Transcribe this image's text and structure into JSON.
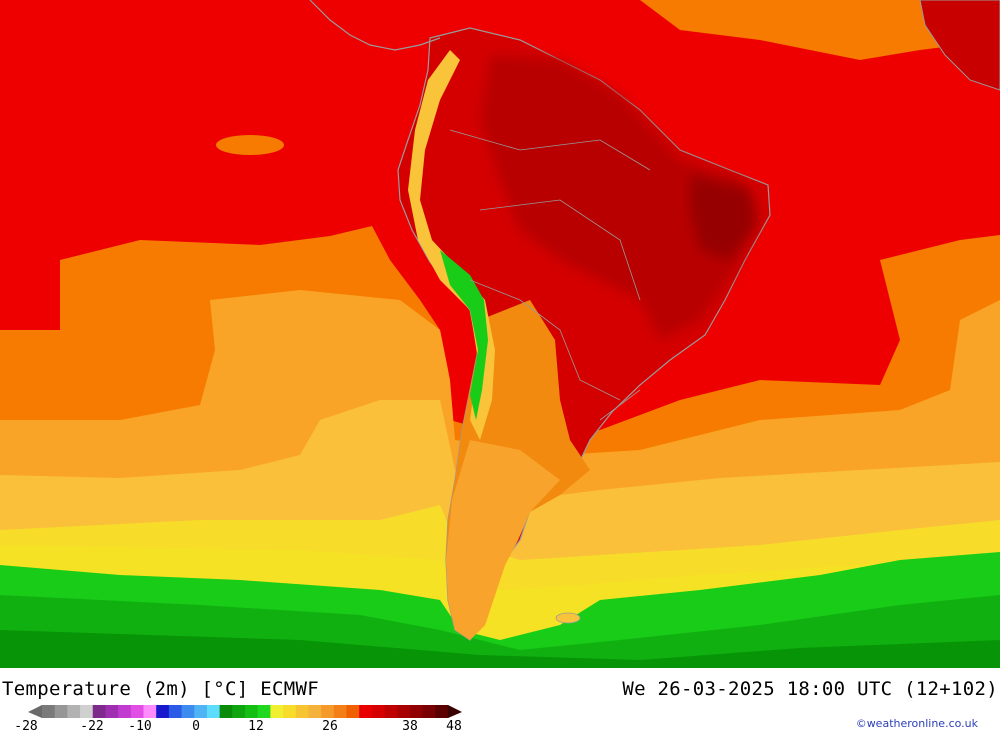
{
  "map": {
    "product": "Temperature (2m) [°C] ECMWF",
    "valid_time": "We 26-03-2025 18:00 UTC (12+102)",
    "credit": "©weatheronline.co.uk",
    "colors": {
      "hot": "#ee0000",
      "very_hot": "#bf0000",
      "extreme": "#990000",
      "warm_orange": "#f77b00",
      "light_orange": "#f9a427",
      "amber": "#fbc03a",
      "yellow": "#f6e224",
      "cool_green": "#18cc18",
      "cold_green": "#079407",
      "coastline": "#9a9a9a"
    }
  },
  "legend": {
    "ticks": [
      "-28",
      "-22",
      "-10",
      "0",
      "12",
      "26",
      "38",
      "48"
    ],
    "swatches": [
      "#7a7a7a",
      "#969696",
      "#b2b2b2",
      "#d0d0d0",
      "#7d2a8c",
      "#9e2fb0",
      "#c23bd0",
      "#e04ee6",
      "#ff8cff",
      "#1818cc",
      "#2a5ae6",
      "#3d8bf0",
      "#4fb3f4",
      "#5edcff",
      "#0a8c0a",
      "#0fa50f",
      "#14bf14",
      "#20d820",
      "#f0f030",
      "#f7dc2a",
      "#f7c532",
      "#f5b23a",
      "#f59a2a",
      "#f47f16",
      "#f06000",
      "#e80000",
      "#d60000",
      "#c00000",
      "#a80000",
      "#900000",
      "#780000",
      "#5a0000"
    ]
  }
}
